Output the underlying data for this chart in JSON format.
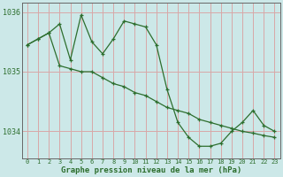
{
  "xlabel": "Graphe pression niveau de la mer (hPa)",
  "background_color": "#cce8e8",
  "grid_color": "#d8a8a8",
  "line_color": "#2d6e2d",
  "ylim": [
    1033.55,
    1036.15
  ],
  "xlim": [
    -0.5,
    23.5
  ],
  "yticks": [
    1034,
    1035,
    1036
  ],
  "xticks": [
    0,
    1,
    2,
    3,
    4,
    5,
    6,
    7,
    8,
    9,
    10,
    11,
    12,
    13,
    14,
    15,
    16,
    17,
    18,
    19,
    20,
    21,
    22,
    23
  ],
  "series1_x": [
    0,
    1,
    2,
    3,
    4,
    5,
    6,
    7,
    8,
    9,
    10,
    11,
    12,
    13,
    14,
    15,
    16,
    17,
    18,
    19,
    20,
    21,
    22,
    23
  ],
  "series1_y": [
    1035.45,
    1035.55,
    1035.65,
    1035.8,
    1035.2,
    1035.95,
    1035.5,
    1035.3,
    1035.55,
    1035.85,
    1035.8,
    1035.75,
    1035.45,
    1034.7,
    1034.15,
    1033.9,
    1033.75,
    1033.75,
    1033.8,
    1034.0,
    1034.15,
    1034.35,
    1034.1,
    1034.0
  ],
  "series2_x": [
    0,
    1,
    2,
    3,
    4,
    5,
    6,
    7,
    8,
    9,
    10,
    11,
    12,
    13,
    14,
    15,
    16,
    17,
    18,
    19,
    20,
    21,
    22,
    23
  ],
  "series2_y": [
    1035.45,
    1035.55,
    1035.65,
    1035.1,
    1035.05,
    1035.0,
    1035.0,
    1034.9,
    1034.8,
    1034.75,
    1034.65,
    1034.6,
    1034.5,
    1034.4,
    1034.35,
    1034.3,
    1034.2,
    1034.15,
    1034.1,
    1034.05,
    1034.0,
    1033.97,
    1033.93,
    1033.9
  ]
}
